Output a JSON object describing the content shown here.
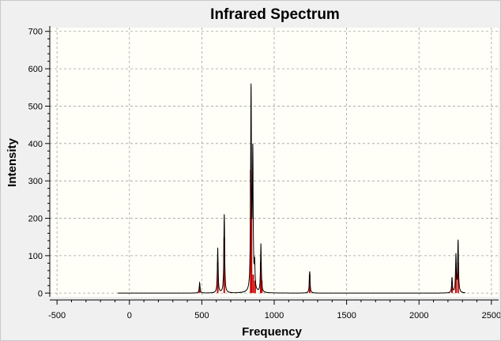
{
  "chart_data": {
    "type": "line",
    "title": "Infrared Spectrum",
    "xlabel": "Frequency",
    "ylabel": "Intensity",
    "xlim": [
      -550,
      2550
    ],
    "ylim": [
      -10,
      710
    ],
    "xticks": [
      -500,
      0,
      500,
      1000,
      1500,
      2000,
      2500
    ],
    "yticks": [
      0,
      100,
      200,
      300,
      400,
      500,
      600,
      700
    ],
    "grid": true,
    "background": "#fffff8",
    "line_color": "#000000",
    "stick_color": "#cc0000",
    "spectrum_range": [
      -80,
      2320
    ],
    "bands": [
      {
        "x": 485,
        "i": 5
      },
      {
        "x": 610,
        "i": 25
      },
      {
        "x": 655,
        "i": 45
      },
      {
        "x": 838,
        "i": 100
      },
      {
        "x": 843,
        "i": 80
      },
      {
        "x": 855,
        "i": 15
      },
      {
        "x": 868,
        "i": 10
      },
      {
        "x": 907,
        "i": 25
      },
      {
        "x": 914,
        "i": 10
      },
      {
        "x": 1245,
        "i": 15
      },
      {
        "x": 2228,
        "i": 8
      },
      {
        "x": 2255,
        "i": 20
      },
      {
        "x": 2270,
        "i": 25
      }
    ],
    "peaks": [
      {
        "x": 485,
        "y": 28
      },
      {
        "x": 610,
        "y": 120
      },
      {
        "x": 655,
        "y": 210
      },
      {
        "x": 840,
        "y": 535
      },
      {
        "x": 852,
        "y": 360
      },
      {
        "x": 865,
        "y": 65
      },
      {
        "x": 908,
        "y": 130
      },
      {
        "x": 1245,
        "y": 58
      },
      {
        "x": 2228,
        "y": 40
      },
      {
        "x": 2255,
        "y": 100
      },
      {
        "x": 2270,
        "y": 138
      }
    ]
  }
}
